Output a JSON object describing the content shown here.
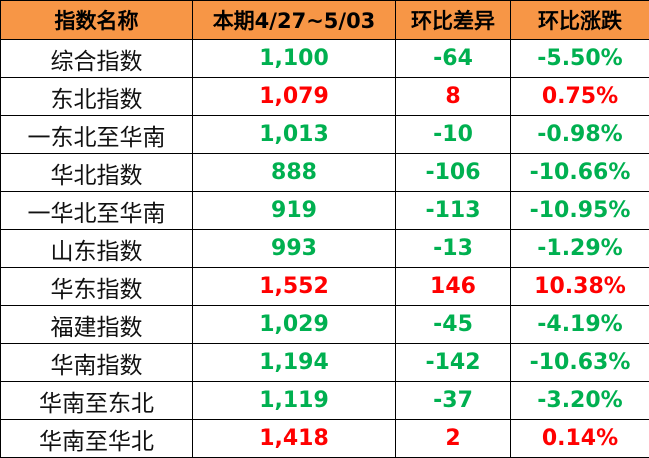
{
  "headers": [
    "指数名称",
    "本期4/27~5/03",
    "环比差异",
    "环比涨跌"
  ],
  "colors": {
    "header_bg": "#F79646",
    "up": "#FF0000",
    "down": "#00B050"
  },
  "rows": [
    {
      "name": "综合指数",
      "value": "1,100",
      "diff": "-64",
      "pct": "-5.50%",
      "trend": "down"
    },
    {
      "name": "东北指数",
      "value": "1,079",
      "diff": "8",
      "pct": "0.75%",
      "trend": "up"
    },
    {
      "name": "一东北至华南",
      "value": "1,013",
      "diff": "-10",
      "pct": "-0.98%",
      "trend": "down"
    },
    {
      "name": "华北指数",
      "value": "888",
      "diff": "-106",
      "pct": "-10.66%",
      "trend": "down"
    },
    {
      "name": "一华北至华南",
      "value": "919",
      "diff": "-113",
      "pct": "-10.95%",
      "trend": "down"
    },
    {
      "name": "山东指数",
      "value": "993",
      "diff": "-13",
      "pct": "-1.29%",
      "trend": "down"
    },
    {
      "name": "华东指数",
      "value": "1,552",
      "diff": "146",
      "pct": "10.38%",
      "trend": "up"
    },
    {
      "name": "福建指数",
      "value": "1,029",
      "diff": "-45",
      "pct": "-4.19%",
      "trend": "down"
    },
    {
      "name": "华南指数",
      "value": "1,194",
      "diff": "-142",
      "pct": "-10.63%",
      "trend": "down"
    },
    {
      "name": "华南至东北",
      "value": "1,119",
      "diff": "-37",
      "pct": "-3.20%",
      "trend": "down"
    },
    {
      "name": "华南至华北",
      "value": "1,418",
      "diff": "2",
      "pct": "0.14%",
      "trend": "up"
    }
  ]
}
